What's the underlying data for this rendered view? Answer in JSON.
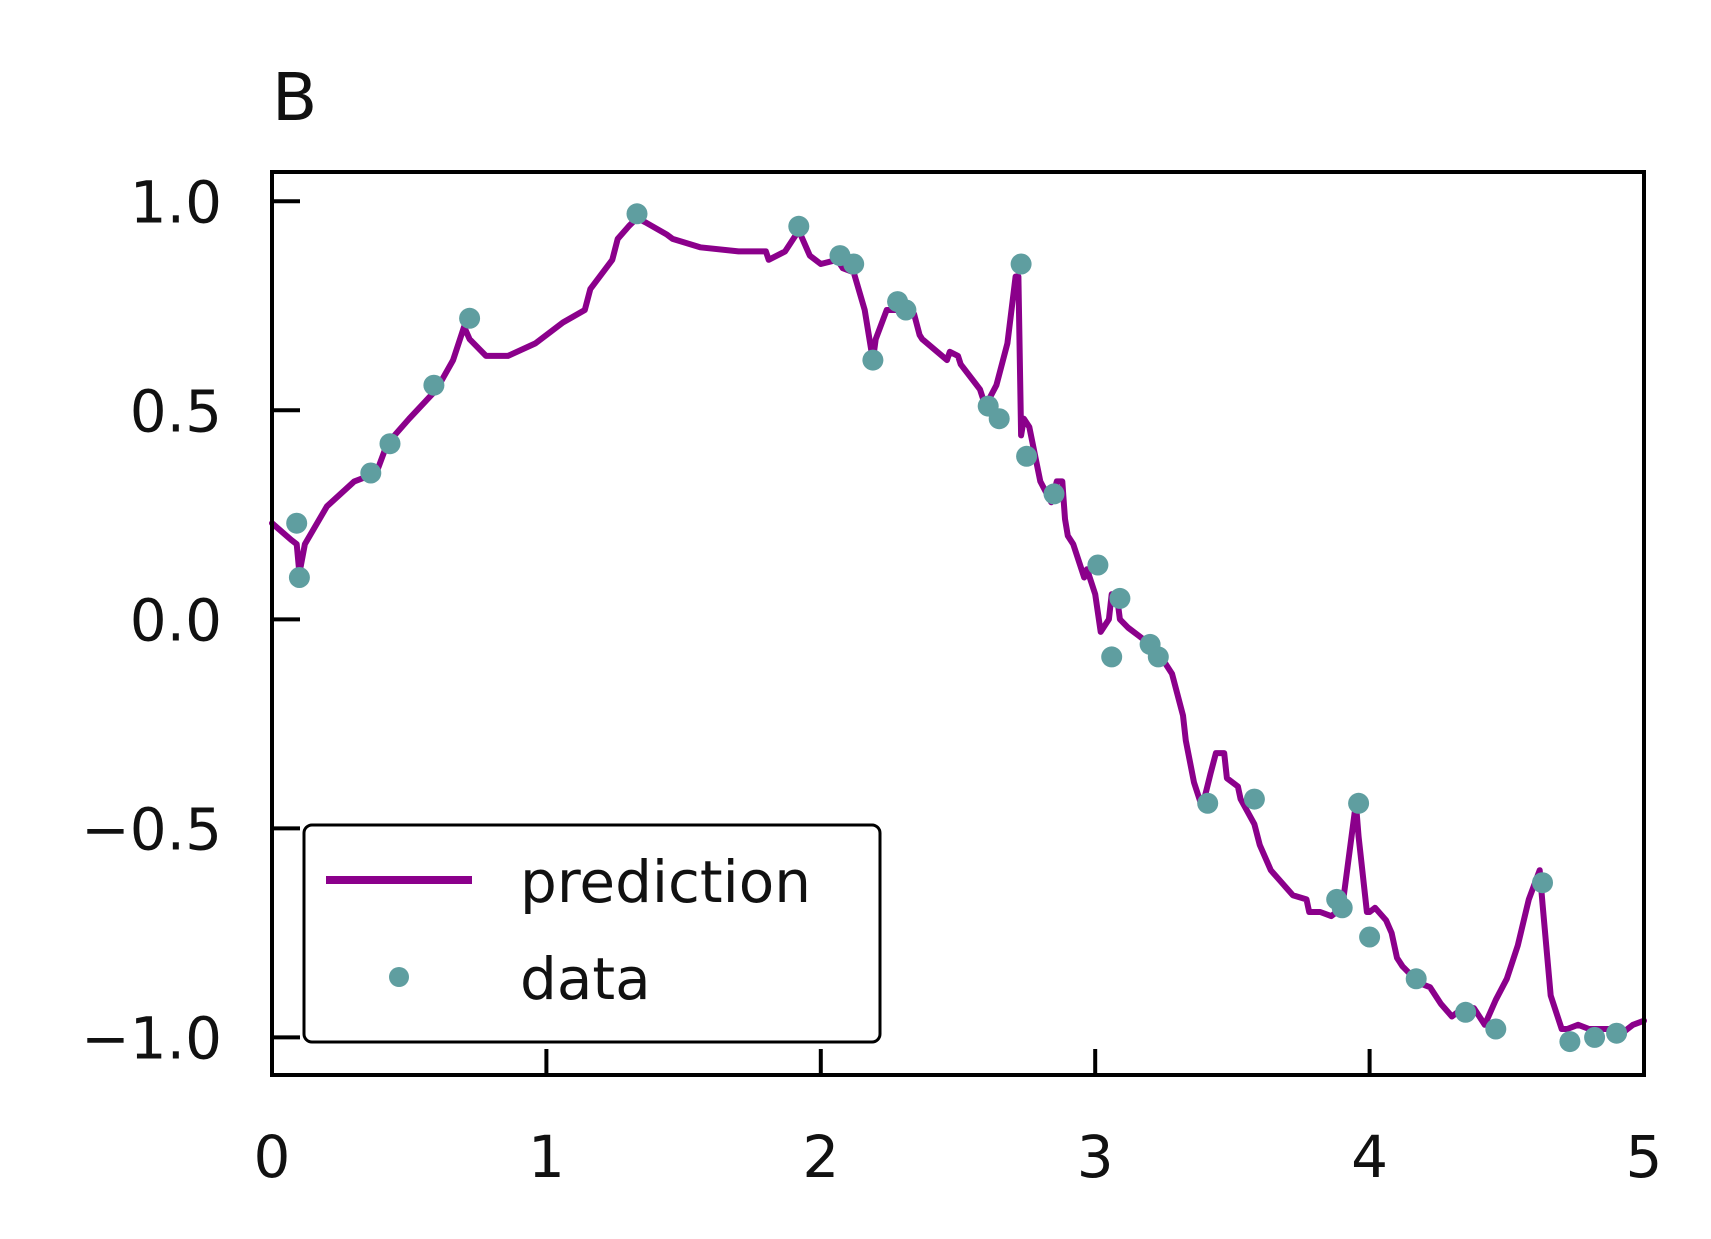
{
  "chart_data": {
    "type": "line",
    "title": "B",
    "xlabel": "",
    "ylabel": "",
    "xlim": [
      0,
      5
    ],
    "ylim": [
      -1.09,
      1.07
    ],
    "x_ticks": [
      0,
      1,
      2,
      3,
      4,
      5
    ],
    "x_tick_labels": [
      "0",
      "1",
      "2",
      "3",
      "4",
      "5"
    ],
    "y_ticks": [
      -1.0,
      -0.5,
      0.0,
      0.5,
      1.0
    ],
    "y_tick_labels": [
      "−1.0",
      "−0.5",
      "0.0",
      "0.5",
      "1.0"
    ],
    "grid": false,
    "legend": {
      "position": "lower-left",
      "entries": [
        "prediction",
        "data"
      ]
    },
    "colors": {
      "prediction": "#8b008b",
      "data": "#5f9ea0"
    },
    "series": [
      {
        "name": "prediction",
        "kind": "line",
        "x": [
          0.0,
          0.07,
          0.09,
          0.1,
          0.12,
          0.2,
          0.3,
          0.38,
          0.42,
          0.5,
          0.6,
          0.66,
          0.7,
          0.72,
          0.78,
          0.86,
          0.96,
          1.06,
          1.14,
          1.16,
          1.24,
          1.26,
          1.3,
          1.33,
          1.36,
          1.44,
          1.46,
          1.56,
          1.7,
          1.8,
          1.81,
          1.87,
          1.92,
          1.96,
          2.0,
          2.06,
          2.08,
          2.12,
          2.16,
          2.19,
          2.2,
          2.24,
          2.3,
          2.34,
          2.36,
          2.37,
          2.46,
          2.47,
          2.5,
          2.51,
          2.58,
          2.6,
          2.64,
          2.68,
          2.71,
          2.72,
          2.73,
          2.74,
          2.76,
          2.8,
          2.84,
          2.86,
          2.88,
          2.89,
          2.9,
          2.92,
          2.96,
          2.97,
          3.0,
          3.02,
          3.05,
          3.06,
          3.08,
          3.09,
          3.12,
          3.16,
          3.2,
          3.24,
          3.28,
          3.32,
          3.33,
          3.36,
          3.39,
          3.42,
          3.44,
          3.47,
          3.48,
          3.52,
          3.53,
          3.58,
          3.6,
          3.64,
          3.68,
          3.72,
          3.77,
          3.78,
          3.82,
          3.86,
          3.9,
          3.93,
          3.95,
          3.96,
          3.99,
          4.0,
          4.02,
          4.06,
          4.08,
          4.1,
          4.12,
          4.18,
          4.22,
          4.26,
          4.3,
          4.34,
          4.38,
          4.42,
          4.44,
          4.46,
          4.5,
          4.54,
          4.58,
          4.62,
          4.63,
          4.66,
          4.7,
          4.72,
          4.76,
          4.8,
          4.84,
          4.88,
          4.92,
          4.96,
          5.0
        ],
        "y": [
          0.23,
          0.19,
          0.18,
          0.11,
          0.18,
          0.27,
          0.33,
          0.35,
          0.42,
          0.48,
          0.55,
          0.62,
          0.7,
          0.67,
          0.63,
          0.63,
          0.66,
          0.71,
          0.74,
          0.79,
          0.86,
          0.91,
          0.94,
          0.96,
          0.95,
          0.92,
          0.91,
          0.89,
          0.88,
          0.88,
          0.86,
          0.88,
          0.93,
          0.87,
          0.85,
          0.86,
          0.84,
          0.83,
          0.74,
          0.62,
          0.67,
          0.74,
          0.74,
          0.73,
          0.68,
          0.67,
          0.62,
          0.64,
          0.63,
          0.61,
          0.55,
          0.51,
          0.56,
          0.66,
          0.82,
          0.82,
          0.44,
          0.48,
          0.46,
          0.33,
          0.28,
          0.33,
          0.33,
          0.24,
          0.2,
          0.18,
          0.1,
          0.12,
          0.06,
          -0.03,
          0.0,
          0.06,
          0.05,
          0.0,
          -0.02,
          -0.04,
          -0.06,
          -0.09,
          -0.13,
          -0.23,
          -0.29,
          -0.39,
          -0.45,
          -0.37,
          -0.32,
          -0.32,
          -0.38,
          -0.4,
          -0.43,
          -0.49,
          -0.54,
          -0.6,
          -0.63,
          -0.66,
          -0.67,
          -0.7,
          -0.7,
          -0.71,
          -0.69,
          -0.54,
          -0.44,
          -0.52,
          -0.7,
          -0.7,
          -0.69,
          -0.72,
          -0.75,
          -0.81,
          -0.83,
          -0.87,
          -0.88,
          -0.92,
          -0.95,
          -0.93,
          -0.93,
          -0.97,
          -0.94,
          -0.91,
          -0.86,
          -0.78,
          -0.67,
          -0.6,
          -0.68,
          -0.9,
          -0.98,
          -0.98,
          -0.97,
          -0.98,
          -0.98,
          -0.98,
          -0.99,
          -0.97,
          -0.96
        ]
      },
      {
        "name": "data",
        "kind": "scatter",
        "x": [
          0.09,
          0.1,
          0.36,
          0.43,
          0.59,
          0.72,
          1.33,
          1.92,
          2.07,
          2.12,
          2.19,
          2.28,
          2.31,
          2.61,
          2.65,
          2.73,
          2.75,
          2.85,
          3.01,
          3.06,
          3.09,
          3.2,
          3.23,
          3.41,
          3.58,
          3.88,
          3.9,
          3.96,
          4.0,
          4.17,
          4.35,
          4.46,
          4.63,
          4.73,
          4.82,
          4.9
        ],
        "y": [
          0.23,
          0.1,
          0.35,
          0.42,
          0.56,
          0.72,
          0.97,
          0.94,
          0.87,
          0.85,
          0.62,
          0.76,
          0.74,
          0.51,
          0.48,
          0.85,
          0.39,
          0.3,
          0.13,
          -0.09,
          0.05,
          -0.06,
          -0.09,
          -0.44,
          -0.43,
          -0.67,
          -0.69,
          -0.44,
          -0.76,
          -0.86,
          -0.94,
          -0.98,
          -0.63,
          -1.01,
          -1.0,
          -0.99
        ]
      }
    ]
  }
}
